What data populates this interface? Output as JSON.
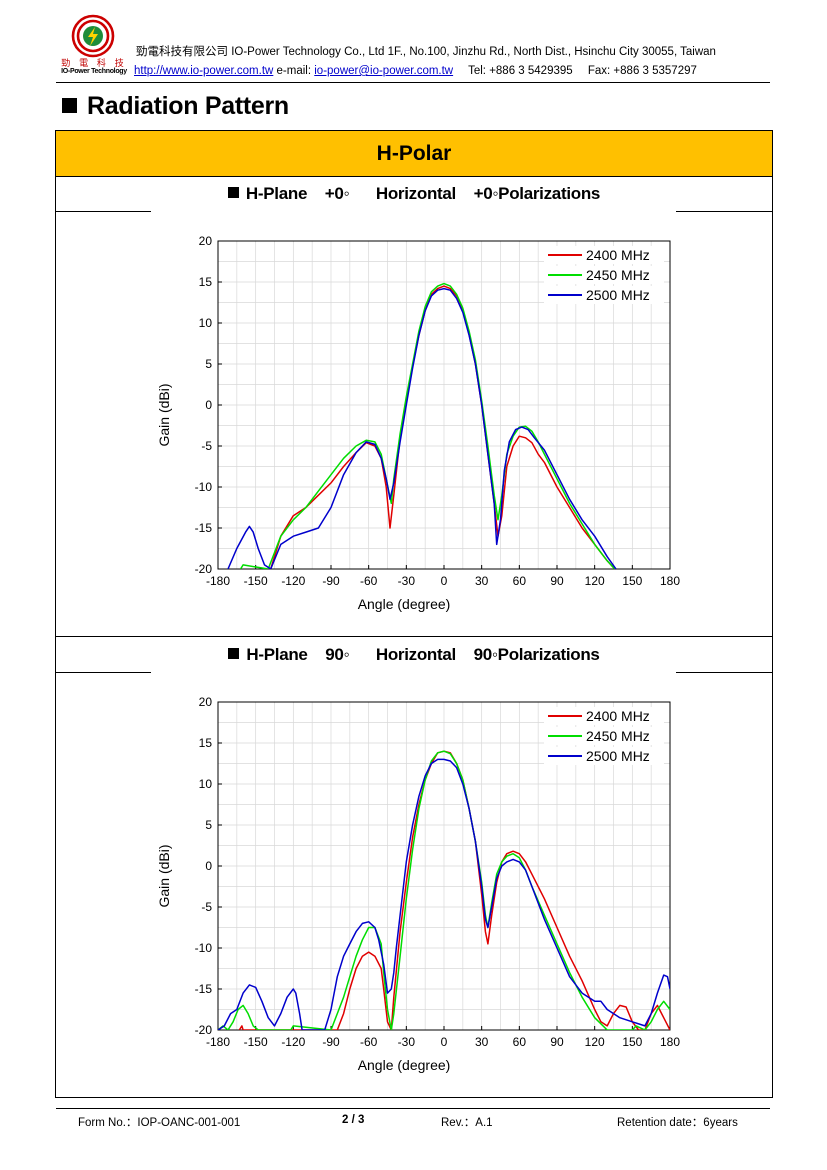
{
  "header": {
    "logo_zh": "勁 電 科 技",
    "logo_en": "IO-Power Technology",
    "company_line": "勁電科技有限公司 IO-Power Technology Co., Ltd 1F., No.100, Jinzhu Rd., North Dist., Hsinchu City 30055, Taiwan",
    "website": "http://www.io-power.com.tw",
    "email_label": "e-mail:",
    "email": "io-power@io-power.com.tw",
    "tel": "Tel: +886 3 5429395",
    "fax": "Fax: +886 3 5357297"
  },
  "section_title": "Radiation Pattern",
  "polar_title": "H-Polar",
  "subtitles": [
    "H-Plane    +0◦      Horizontal    +0◦Polarizations",
    "H-Plane    90◦      Horizontal    90◦Polarizations"
  ],
  "colors": {
    "band": "#ffc000",
    "s2400": "#e00000",
    "s2450": "#00dd00",
    "s2500": "#0000cc",
    "grid": "#d8d8d8"
  },
  "chart_data": [
    {
      "type": "line",
      "xlabel": "Angle (degree)",
      "ylabel": "Gain (dBi)",
      "xlim": [
        -180,
        180
      ],
      "ylim": [
        -20,
        20
      ],
      "xticks": [
        "-180",
        "-150",
        "-120",
        "-90",
        "-60",
        "-30",
        "0",
        "30",
        "60",
        "90",
        "120",
        "150",
        "180"
      ],
      "yticks": [
        "-20",
        "-15",
        "-10",
        "-5",
        "0",
        "5",
        "10",
        "15",
        "20"
      ],
      "grid": true,
      "legend_position": "top-right",
      "series": [
        {
          "name": "2400 MHz",
          "color": "#e00000",
          "x": [
            -138,
            -130,
            -120,
            -110,
            -100,
            -90,
            -80,
            -70,
            -62,
            -55,
            -50,
            -46,
            -43,
            -40,
            -35,
            -30,
            -25,
            -20,
            -15,
            -10,
            -5,
            0,
            5,
            10,
            15,
            20,
            25,
            30,
            35,
            40,
            43,
            46,
            50,
            55,
            60,
            65,
            70,
            75,
            80,
            90,
            100,
            110,
            120,
            130,
            136
          ],
          "y": [
            -20,
            -16,
            -13.5,
            -12.5,
            -11,
            -9.5,
            -7.5,
            -5.8,
            -4.6,
            -5,
            -6.5,
            -10,
            -15,
            -11,
            -4,
            0.5,
            4.8,
            8.5,
            11.5,
            13.5,
            14.2,
            14.5,
            14.2,
            13.3,
            11.5,
            8.6,
            5,
            0,
            -6,
            -12,
            -16,
            -13.5,
            -7.5,
            -5,
            -3.8,
            -4,
            -4.6,
            -6,
            -7,
            -10,
            -12.5,
            -15,
            -17,
            -19,
            -20
          ]
        },
        {
          "name": "2450 MHz",
          "color": "#00dd00",
          "x": [
            -162,
            -160,
            -140,
            -130,
            -120,
            -110,
            -100,
            -90,
            -80,
            -70,
            -62,
            -55,
            -50,
            -46,
            -42,
            -40,
            -35,
            -30,
            -25,
            -20,
            -15,
            -10,
            -5,
            0,
            5,
            10,
            15,
            20,
            25,
            30,
            35,
            40,
            43,
            46,
            50,
            55,
            60,
            65,
            70,
            75,
            80,
            90,
            100,
            110,
            120,
            130,
            136
          ],
          "y": [
            -20,
            -19.5,
            -20,
            -16,
            -14,
            -12.5,
            -10.5,
            -8.5,
            -6.5,
            -5,
            -4.3,
            -4.5,
            -6,
            -9,
            -12,
            -9,
            -3.5,
            1,
            5,
            9,
            12,
            13.8,
            14.5,
            14.8,
            14.5,
            13.5,
            11.8,
            9,
            5.5,
            0.5,
            -5,
            -11,
            -14,
            -11,
            -6,
            -3.8,
            -2.7,
            -2.6,
            -3.2,
            -4.5,
            -6,
            -9,
            -12,
            -14.5,
            -17,
            -19,
            -20
          ]
        },
        {
          "name": "2500 MHz",
          "color": "#0000cc",
          "x": [
            -172,
            -165,
            -158,
            -155,
            -152,
            -148,
            -143,
            -138,
            -130,
            -120,
            -110,
            -100,
            -90,
            -80,
            -70,
            -62,
            -55,
            -50,
            -46,
            -43,
            -40,
            -35,
            -30,
            -25,
            -20,
            -15,
            -10,
            -5,
            0,
            5,
            10,
            15,
            20,
            25,
            30,
            35,
            40,
            42,
            45,
            48,
            52,
            57,
            62,
            67,
            72,
            80,
            90,
            100,
            110,
            120,
            130,
            137
          ],
          "y": [
            -20,
            -17.5,
            -15.5,
            -14.8,
            -15.5,
            -17.5,
            -19.5,
            -20,
            -17,
            -16,
            -15.5,
            -15,
            -12.5,
            -8.5,
            -5.8,
            -4.5,
            -4.8,
            -6.5,
            -9,
            -11.5,
            -9.5,
            -4.5,
            0,
            4.5,
            8.5,
            11.5,
            13.3,
            14,
            14.2,
            14,
            13,
            11.3,
            8.5,
            5,
            0,
            -6,
            -12,
            -17,
            -14,
            -8,
            -4.5,
            -3,
            -2.7,
            -3,
            -4,
            -5.5,
            -8.5,
            -11.5,
            -14,
            -16,
            -18.5,
            -20
          ]
        }
      ]
    },
    {
      "type": "line",
      "xlabel": "Angle (degree)",
      "ylabel": "Gain (dBi)",
      "xlim": [
        -180,
        180
      ],
      "ylim": [
        -20,
        20
      ],
      "xticks": [
        "-180",
        "-150",
        "-120",
        "-90",
        "-60",
        "-30",
        "0",
        "30",
        "60",
        "90",
        "120",
        "150",
        "180"
      ],
      "yticks": [
        "-20",
        "-15",
        "-10",
        "-5",
        "0",
        "5",
        "10",
        "15",
        "20"
      ],
      "grid": true,
      "legend_position": "top-right",
      "series": [
        {
          "name": "2400 MHz",
          "color": "#e00000",
          "x": [
            -163,
            -161,
            -160,
            -85,
            -80,
            -75,
            -70,
            -65,
            -60,
            -55,
            -50,
            -48,
            -45,
            -42,
            -40,
            -35,
            -30,
            -25,
            -20,
            -15,
            -10,
            -5,
            0,
            5,
            10,
            15,
            20,
            25,
            30,
            33,
            35,
            38,
            42,
            46,
            50,
            55,
            60,
            65,
            70,
            80,
            90,
            100,
            110,
            120,
            125,
            130,
            135,
            140,
            145,
            150,
            155,
            160,
            165,
            170,
            175,
            180
          ],
          "y": [
            -20,
            -19.5,
            -20,
            -20,
            -18,
            -15,
            -12.5,
            -11,
            -10.5,
            -11,
            -12.5,
            -15,
            -19,
            -20,
            -16,
            -8,
            -2,
            3.5,
            7.5,
            10.5,
            12.5,
            13.8,
            14,
            13.8,
            12.5,
            10.5,
            7,
            3,
            -3.5,
            -8,
            -9.5,
            -6,
            -2,
            0.5,
            1.5,
            1.8,
            1.5,
            0.5,
            -1,
            -4,
            -7.5,
            -11,
            -14,
            -17.5,
            -19,
            -19.5,
            -18,
            -17,
            -17.2,
            -19,
            -20,
            -20,
            -18,
            -17,
            -18.5,
            -20
          ]
        },
        {
          "name": "2450 MHz",
          "color": "#00dd00",
          "x": [
            -180,
            -176,
            -172,
            -168,
            -164,
            -160,
            -156,
            -152,
            -148,
            -145,
            -122,
            -120,
            -90,
            -85,
            -80,
            -75,
            -70,
            -65,
            -60,
            -55,
            -50,
            -48,
            -45,
            -42,
            -40,
            -35,
            -30,
            -25,
            -20,
            -15,
            -10,
            -5,
            0,
            5,
            10,
            15,
            20,
            25,
            30,
            33,
            35,
            38,
            42,
            46,
            50,
            55,
            60,
            65,
            70,
            80,
            90,
            100,
            110,
            120,
            130,
            140,
            150,
            153,
            160,
            165,
            170,
            175,
            180
          ],
          "y": [
            -20,
            -19.5,
            -20,
            -19,
            -17.5,
            -17,
            -18,
            -19.5,
            -20,
            -20,
            -20,
            -19.5,
            -20,
            -18,
            -16,
            -13.5,
            -11,
            -9,
            -7.5,
            -7.5,
            -9.5,
            -13,
            -17.5,
            -20,
            -18,
            -11,
            -4,
            2,
            7,
            10.5,
            12.8,
            13.8,
            14,
            13.7,
            12.5,
            10.5,
            7,
            3,
            -2,
            -6,
            -7.5,
            -4.5,
            -1,
            0.5,
            1.2,
            1.5,
            1,
            -0.5,
            -2.5,
            -6,
            -9.5,
            -13,
            -16,
            -18.5,
            -20,
            -20,
            -20,
            -19.5,
            -20,
            -19,
            -17.5,
            -16.5,
            -17.5
          ]
        },
        {
          "name": "2500 MHz",
          "color": "#0000cc",
          "x": [
            -180,
            -175,
            -170,
            -165,
            -160,
            -155,
            -150,
            -145,
            -140,
            -135,
            -130,
            -125,
            -120,
            -118,
            -115,
            -113,
            -95,
            -90,
            -85,
            -80,
            -75,
            -70,
            -65,
            -60,
            -55,
            -52,
            -48,
            -45,
            -42,
            -40,
            -38,
            -35,
            -30,
            -25,
            -20,
            -15,
            -10,
            -5,
            0,
            5,
            10,
            15,
            20,
            25,
            30,
            33,
            35,
            38,
            42,
            46,
            50,
            55,
            60,
            65,
            70,
            80,
            90,
            100,
            110,
            120,
            125,
            130,
            140,
            150,
            160,
            165,
            170,
            175,
            178,
            180
          ],
          "y": [
            -20,
            -19.5,
            -18,
            -17.5,
            -15.5,
            -14.5,
            -14.8,
            -16.5,
            -18.5,
            -19.5,
            -18,
            -16,
            -15,
            -15.5,
            -18,
            -20,
            -20,
            -17.5,
            -13.5,
            -11,
            -9.5,
            -8,
            -7,
            -6.8,
            -7.5,
            -9,
            -12,
            -15.5,
            -15,
            -13,
            -10,
            -6,
            0.5,
            5,
            8.5,
            11,
            12.5,
            13,
            13,
            12.8,
            12,
            10,
            7,
            3,
            -2.5,
            -6.5,
            -7.5,
            -5,
            -1.5,
            0,
            0.5,
            0.8,
            0.5,
            -0.5,
            -2.5,
            -6.5,
            -10,
            -13.5,
            -15.5,
            -16.5,
            -16.5,
            -17.5,
            -18.5,
            -19,
            -19.5,
            -18,
            -15.5,
            -13.3,
            -13.5,
            -15
          ]
        }
      ]
    }
  ],
  "footer": {
    "form_no": "Form No.：IOP-OANC-001-001",
    "page": "2 / 3",
    "rev": "Rev.：A.1",
    "retention": "Retention date：6years"
  }
}
